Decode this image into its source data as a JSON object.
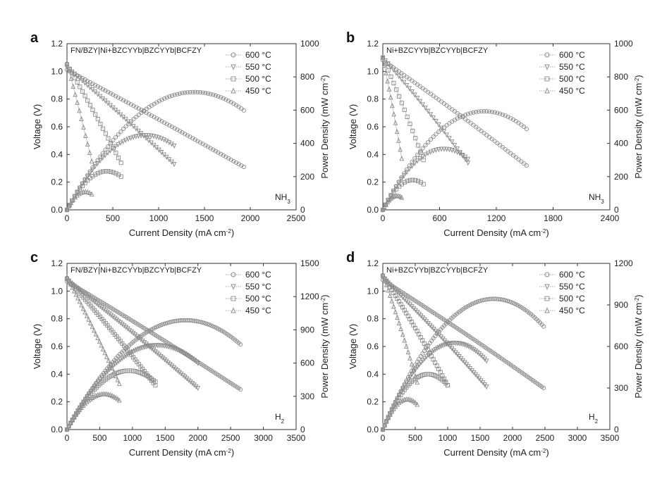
{
  "chart_data": [
    {
      "type": "line",
      "panel_label": "a",
      "title": "FN/BZY|Ni+BZCYYb|BZCYYb|BCFZY",
      "fuel_label": "NH",
      "fuel_sub": "3",
      "xlabel": "Current Density (mA cm",
      "ylabel": "Voltage (V)",
      "y2label": "Power Density (mW cm",
      "unit_sup": "-2",
      "unit_close": ")",
      "xlim": [
        0,
        2500
      ],
      "xticks": [
        0,
        500,
        1000,
        1500,
        2000,
        2500
      ],
      "ylim": [
        0,
        1.2
      ],
      "yticks": [
        0.0,
        0.2,
        0.4,
        0.6,
        0.8,
        1.0,
        1.2
      ],
      "y2lim": [
        0,
        1000
      ],
      "y2ticks": [
        0,
        200,
        400,
        600,
        800,
        1000
      ],
      "legend": [
        "600 °C",
        "550 °C",
        "500 °C",
        "450 °C"
      ],
      "series": [
        {
          "name": "600 °C",
          "ocv": 1.01,
          "vend": 0.31,
          "imax": 1930,
          "curve": 0.05
        },
        {
          "name": "550 °C",
          "ocv": 1.03,
          "vend": 0.33,
          "imax": 1170,
          "curve": 0.08
        },
        {
          "name": "500 °C",
          "ocv": 1.05,
          "vend": 0.34,
          "imax": 590,
          "curve": 0.1
        },
        {
          "name": "450 °C",
          "ocv": 1.06,
          "vend": 0.35,
          "imax": 270,
          "curve": 0.1
        }
      ]
    },
    {
      "type": "line",
      "panel_label": "b",
      "title": "Ni+BZCYYb|BZCYYb|BCFZY",
      "fuel_label": "NH",
      "fuel_sub": "3",
      "xlabel": "Current Density (mA cm",
      "ylabel": "Voltage (V)",
      "y2label": "Power Density (mW cm",
      "unit_sup": "-2",
      "unit_close": ")",
      "xlim": [
        0,
        2400
      ],
      "xticks": [
        0,
        600,
        1200,
        1800,
        2400
      ],
      "ylim": [
        0,
        1.2
      ],
      "yticks": [
        0.0,
        0.2,
        0.4,
        0.6,
        0.8,
        1.0,
        1.2
      ],
      "y2lim": [
        0,
        1000
      ],
      "y2ticks": [
        0,
        200,
        400,
        600,
        800,
        1000
      ],
      "legend": [
        "600 °C",
        "550 °C",
        "500 °C",
        "450 °C"
      ],
      "series": [
        {
          "name": "600 °C",
          "ocv": 1.08,
          "vend": 0.32,
          "imax": 1520,
          "curve": 0.1
        },
        {
          "name": "550 °C",
          "ocv": 1.1,
          "vend": 0.34,
          "imax": 900,
          "curve": 0.15
        },
        {
          "name": "500 °C",
          "ocv": 1.1,
          "vend": 0.36,
          "imax": 430,
          "curve": 0.15
        },
        {
          "name": "450 °C",
          "ocv": 1.1,
          "vend": 0.37,
          "imax": 200,
          "curve": 0.15
        }
      ]
    },
    {
      "type": "line",
      "panel_label": "c",
      "title": "FN/BZY|Ni+BZCYYb|BZCYYb|BCFZY",
      "fuel_label": "H",
      "fuel_sub": "2",
      "xlabel": "Current Density (mA cm",
      "ylabel": "Voltage (V)",
      "y2label": "Power Density (mW cm",
      "unit_sup": "-2",
      "unit_close": ")",
      "xlim": [
        0,
        3500
      ],
      "xticks": [
        0,
        500,
        1000,
        1500,
        2000,
        2500,
        3000,
        3500
      ],
      "ylim": [
        0,
        1.2
      ],
      "yticks": [
        0.0,
        0.2,
        0.4,
        0.6,
        0.8,
        1.0,
        1.2
      ],
      "y2lim": [
        0,
        1500
      ],
      "y2ticks": [
        0,
        300,
        600,
        900,
        1200,
        1500
      ],
      "legend": [
        "600 °C",
        "550 °C",
        "500 °C",
        "450 °C"
      ],
      "series": [
        {
          "name": "600 °C",
          "ocv": 1.07,
          "vend": 0.29,
          "imax": 2650,
          "curve": 0.08
        },
        {
          "name": "550 °C",
          "ocv": 1.08,
          "vend": 0.3,
          "imax": 2000,
          "curve": 0.1
        },
        {
          "name": "500 °C",
          "ocv": 1.09,
          "vend": 0.32,
          "imax": 1350,
          "curve": 0.12
        },
        {
          "name": "450 °C",
          "ocv": 1.1,
          "vend": 0.33,
          "imax": 800,
          "curve": 0.12
        }
      ]
    },
    {
      "type": "line",
      "panel_label": "d",
      "title": "Ni+BZCYYb|BZCYYb|BCFZY",
      "fuel_label": "H",
      "fuel_sub": "2",
      "xlabel": "Current Density (mA cm",
      "ylabel": "Voltage (V)",
      "y2label": "Power Density (mW cm",
      "unit_sup": "-2",
      "unit_close": ")",
      "xlim": [
        0,
        3500
      ],
      "xticks": [
        0,
        500,
        1000,
        1500,
        2000,
        2500,
        3000,
        3500
      ],
      "ylim": [
        0,
        1.2
      ],
      "yticks": [
        0.0,
        0.2,
        0.4,
        0.6,
        0.8,
        1.0,
        1.2
      ],
      "y2lim": [
        0,
        1200
      ],
      "y2ticks": [
        0,
        300,
        600,
        900,
        1200
      ],
      "legend": [
        "600 °C",
        "550 °C",
        "500 °C",
        "450 °C"
      ],
      "series": [
        {
          "name": "600 °C",
          "ocv": 1.08,
          "vend": 0.3,
          "imax": 2480,
          "curve": 0.1
        },
        {
          "name": "550 °C",
          "ocv": 1.1,
          "vend": 0.31,
          "imax": 1600,
          "curve": 0.12
        },
        {
          "name": "500 °C",
          "ocv": 1.11,
          "vend": 0.32,
          "imax": 1000,
          "curve": 0.15
        },
        {
          "name": "450 °C",
          "ocv": 1.12,
          "vend": 0.34,
          "imax": 530,
          "curve": 0.15
        }
      ]
    }
  ]
}
